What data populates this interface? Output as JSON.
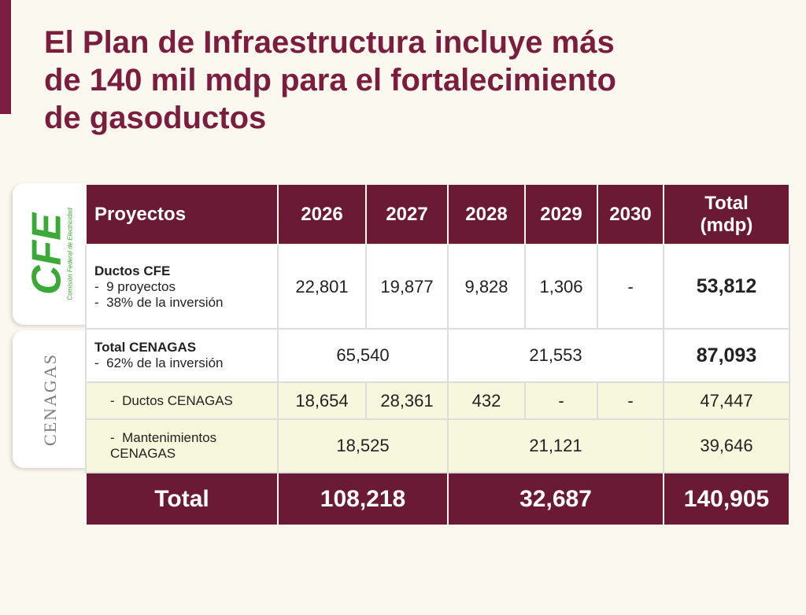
{
  "header": {
    "title_lines": [
      "El Plan de Infraestructura incluye más",
      "de 140 mil mdp para el fortalecimiento",
      "de gasoductos"
    ]
  },
  "logos": {
    "cfe": {
      "name": "CFE",
      "tagline": "Comisión Federal de Electricidad"
    },
    "cenagas": {
      "name": "CENAGAS"
    }
  },
  "table": {
    "columns": [
      "Proyectos",
      "2026",
      "2027",
      "2028",
      "2029",
      "2030",
      "Total (mdp)"
    ],
    "rows": [
      {
        "label": "Ductos CFE",
        "notes": [
          "9 proyectos",
          "38% de la inversión"
        ],
        "cells": [
          "22,801",
          "19,877",
          "9,828",
          "1,306",
          "-",
          "53,812"
        ]
      },
      {
        "label": "Total CENAGAS",
        "notes": [
          "62% de la inversión"
        ],
        "cells": [
          "65,540",
          "21,553",
          "87,093"
        ]
      },
      {
        "label": "Ductos CENAGAS",
        "cells": [
          "18,654",
          "28,361",
          "432",
          "-",
          "-",
          "47,447"
        ]
      },
      {
        "label": "Mantenimientos CENAGAS",
        "cells": [
          "18,525",
          "21,121",
          "39,646"
        ]
      },
      {
        "label": "Total",
        "cells": [
          "108,218",
          "32,687",
          "140,905"
        ]
      }
    ]
  }
}
